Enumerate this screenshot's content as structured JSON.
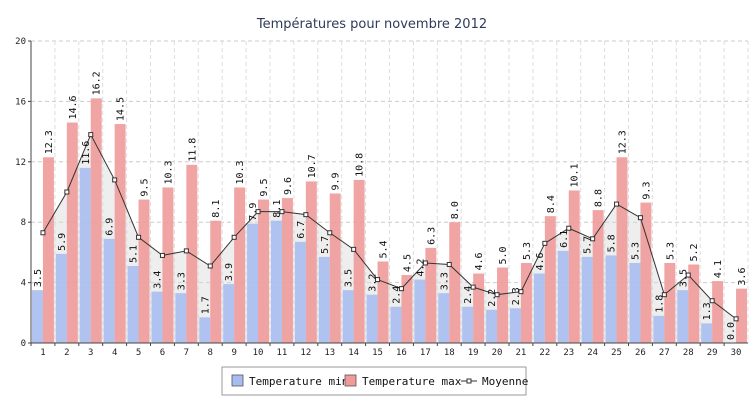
{
  "chart_data": {
    "type": "bar",
    "title": "Températures pour novembre 2012",
    "xlabel": "",
    "ylabel": "",
    "categories": [
      "1",
      "2",
      "3",
      "4",
      "5",
      "6",
      "7",
      "8",
      "9",
      "10",
      "11",
      "12",
      "13",
      "14",
      "15",
      "16",
      "17",
      "18",
      "19",
      "20",
      "21",
      "22",
      "23",
      "24",
      "25",
      "26",
      "27",
      "28",
      "29",
      "30"
    ],
    "ylim": [
      0,
      20
    ],
    "yticks": [
      0,
      4,
      8,
      12,
      16,
      20
    ],
    "grid": true,
    "legend_position": "bottom",
    "series": [
      {
        "name": "Temperature min",
        "type": "bar",
        "color": "#a7bdf0",
        "values": [
          3.5,
          5.9,
          11.6,
          6.9,
          5.1,
          3.4,
          3.3,
          1.7,
          3.9,
          7.9,
          8.1,
          6.7,
          5.7,
          3.5,
          3.2,
          2.4,
          4.2,
          3.3,
          2.4,
          2.2,
          2.3,
          4.6,
          6.1,
          5.7,
          5.8,
          5.3,
          1.8,
          3.5,
          1.3,
          0.0
        ],
        "labels": [
          "3.5",
          "5.9",
          "11.6",
          "6.9",
          "5.1",
          "3.4",
          "3.3",
          "1.7",
          "3.9",
          "7.9",
          "8.1",
          "6.7",
          "5.7",
          "3.5",
          "3.2",
          "2.4",
          "4.2",
          "3.3",
          "2.4",
          "2.2",
          "2.3",
          "4.6",
          "6.1",
          "5.7",
          "5.8",
          "5.3",
          "1.8",
          "3.5",
          "1.3",
          "0.0"
        ]
      },
      {
        "name": "Temperature max",
        "type": "bar",
        "color": "#f09a9a",
        "values": [
          12.3,
          14.6,
          16.2,
          14.5,
          9.5,
          10.3,
          11.8,
          8.1,
          10.3,
          9.5,
          9.6,
          10.7,
          9.9,
          10.8,
          5.4,
          4.5,
          6.3,
          8.0,
          4.6,
          5.0,
          5.3,
          8.4,
          10.1,
          8.8,
          12.3,
          9.3,
          5.3,
          5.2,
          4.1,
          3.6
        ],
        "labels": [
          "12.3",
          "14.6",
          "16.2",
          "14.5",
          "9.5",
          "10.3",
          "11.8",
          "8.1",
          "10.3",
          "9.5",
          "9.6",
          "10.7",
          "9.9",
          "10.8",
          "5.4",
          "4.5",
          "6.3",
          "8.0",
          "4.6",
          "5.0",
          "5.3",
          "8.4",
          "10.1",
          "8.8",
          "12.3",
          "9.3",
          "5.3",
          "5.2",
          "4.1",
          "3.6"
        ]
      },
      {
        "name": "Moyenne",
        "type": "line",
        "color": "#333333",
        "values": [
          7.3,
          10.0,
          13.8,
          10.8,
          7.0,
          5.8,
          6.1,
          5.1,
          7.0,
          8.7,
          8.7,
          8.5,
          7.3,
          6.2,
          4.2,
          3.6,
          5.3,
          5.2,
          3.7,
          3.2,
          3.4,
          6.6,
          7.6,
          6.9,
          9.2,
          8.3,
          3.2,
          4.5,
          2.8,
          1.6
        ]
      }
    ]
  }
}
